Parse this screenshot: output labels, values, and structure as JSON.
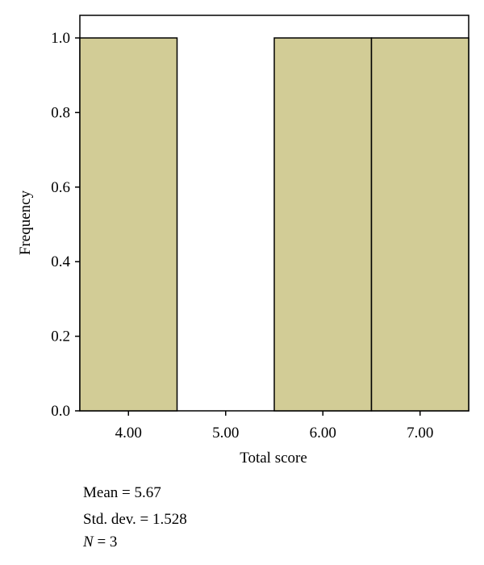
{
  "chart_data": {
    "type": "bar",
    "subtype": "histogram",
    "categories": [
      "4.00",
      "5.00",
      "6.00",
      "7.00"
    ],
    "values": [
      1,
      0,
      1,
      1
    ],
    "bins": [
      {
        "from": 3.5,
        "to": 4.5,
        "count": 1
      },
      {
        "from": 4.5,
        "to": 5.5,
        "count": 0
      },
      {
        "from": 5.5,
        "to": 6.5,
        "count": 1
      },
      {
        "from": 6.5,
        "to": 7.5,
        "count": 1
      }
    ],
    "xlabel": "Total score",
    "ylabel": "Frequency",
    "ylim": [
      0,
      1
    ],
    "xlim": [
      3.5,
      7.5
    ],
    "yticks": [
      "0.0",
      "0.2",
      "0.4",
      "0.6",
      "0.8",
      "1.0"
    ],
    "grid": false,
    "bar_color": "#d2cc96",
    "stats": {
      "mean_label": "Mean = 5.67",
      "std_label": "Std. dev. = 1.528",
      "n_symbol": "N",
      "n_rest": " = 3"
    }
  }
}
